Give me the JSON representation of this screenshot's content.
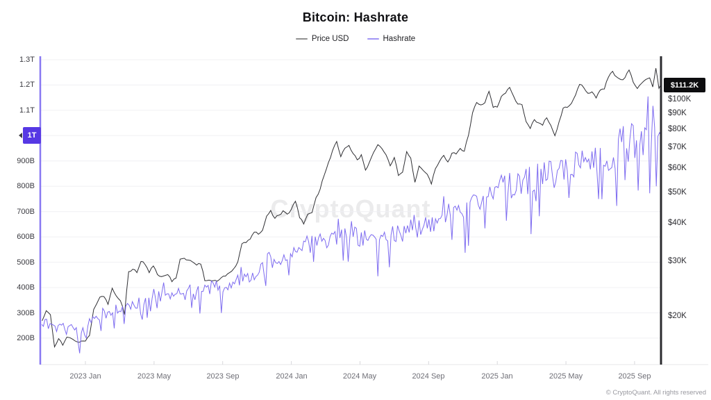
{
  "title": "Bitcoin: Hashrate",
  "legend": {
    "items": [
      {
        "label": "Price USD",
        "swatch_color": "#909090"
      },
      {
        "label": "Hashrate",
        "swatch_color": "#a195f5"
      }
    ]
  },
  "watermark": {
    "text": "CryptoQuant"
  },
  "footer": {
    "text": "© CryptoQuant. All rights reserved"
  },
  "last_value_badges": {
    "hashrate": {
      "label": "1T",
      "bg": "#5638e4",
      "text_color": "#ffffff",
      "value_EH": 1000
    },
    "price": {
      "label": "$111.2K",
      "bg": "#0d0d0f",
      "text_color": "#ffffff",
      "value_K": 111.2
    }
  },
  "colors": {
    "price_line": "#2f2f33",
    "hashrate_line": "#7d6bf0",
    "hashrate_axis": "#8878f2",
    "price_axis": "#2b2b2f",
    "gridline": "#f0f0f3",
    "x_axis_line": "#e7e7ea",
    "x_tick_mark": "#d8d8dc"
  },
  "chart_data": {
    "type": "line",
    "title": "Bitcoin: Hashrate",
    "legend_position": "top-center",
    "grid": "horizontal-only",
    "x_axis": {
      "ticks": [
        "2023 Jan",
        "2023 May",
        "2023 Sep",
        "2024 Jan",
        "2024 May",
        "2024 Sep",
        "2025 Jan",
        "2025 May",
        "2025 Sep"
      ],
      "tick_years": [
        2023.0,
        2023.3333,
        2023.6667,
        2024.0,
        2024.3333,
        2024.6667,
        2025.0,
        2025.3333,
        2025.6667
      ],
      "range_years": [
        2022.788,
        2025.795
      ]
    },
    "left_axis": {
      "title": "Hashrate",
      "unit": "GH/s",
      "scale": "linear",
      "ticks": [
        "1.3T",
        "1.2T",
        "1.1T",
        "1T",
        "900B",
        "800B",
        "700B",
        "600B",
        "500B",
        "400B",
        "300B",
        "200B"
      ],
      "tick_values_EH": [
        1300,
        1200,
        1100,
        1000,
        900,
        800,
        700,
        600,
        500,
        400,
        300,
        200
      ],
      "range_EH": [
        96,
        1314
      ]
    },
    "right_axis": {
      "title": "Price USD",
      "scale": "log",
      "ticks": [
        "$100K",
        "$90K",
        "$80K",
        "$70K",
        "$60K",
        "$50K",
        "$40K",
        "$30K",
        "$20K"
      ],
      "tick_values_K": [
        100,
        90,
        80,
        70,
        60,
        50,
        40,
        30,
        20
      ],
      "range_K": [
        13.9,
        138
      ]
    },
    "series": [
      {
        "name": "Price USD",
        "axis": "right",
        "unit": "USD (thousands)",
        "last_value_K": 111.2,
        "points": [
          [
            2022.79,
            19.3
          ],
          [
            2022.81,
            20.8
          ],
          [
            2022.83,
            20.2
          ],
          [
            2022.85,
            15.9
          ],
          [
            2022.87,
            16.9
          ],
          [
            2022.89,
            16.1
          ],
          [
            2022.91,
            17.1
          ],
          [
            2022.94,
            16.8
          ],
          [
            2022.96,
            16.5
          ],
          [
            2022.98,
            16.6
          ],
          [
            2023.0,
            16.6
          ],
          [
            2023.02,
            17.3
          ],
          [
            2023.04,
            21.0
          ],
          [
            2023.07,
            23.0
          ],
          [
            2023.09,
            23.1
          ],
          [
            2023.11,
            21.8
          ],
          [
            2023.13,
            24.6
          ],
          [
            2023.15,
            23.2
          ],
          [
            2023.17,
            22.4
          ],
          [
            2023.19,
            20.2
          ],
          [
            2023.21,
            27.8
          ],
          [
            2023.23,
            28.3
          ],
          [
            2023.25,
            27.6
          ],
          [
            2023.27,
            30.0
          ],
          [
            2023.29,
            29.3
          ],
          [
            2023.31,
            27.6
          ],
          [
            2023.33,
            29.0
          ],
          [
            2023.35,
            27.2
          ],
          [
            2023.37,
            26.8
          ],
          [
            2023.4,
            27.2
          ],
          [
            2023.42,
            25.8
          ],
          [
            2023.44,
            26.5
          ],
          [
            2023.46,
            30.5
          ],
          [
            2023.48,
            30.7
          ],
          [
            2023.5,
            30.3
          ],
          [
            2023.52,
            29.9
          ],
          [
            2023.54,
            29.2
          ],
          [
            2023.56,
            29.4
          ],
          [
            2023.58,
            26.0
          ],
          [
            2023.6,
            26.1
          ],
          [
            2023.62,
            26.0
          ],
          [
            2023.64,
            25.9
          ],
          [
            2023.66,
            26.6
          ],
          [
            2023.68,
            26.9
          ],
          [
            2023.7,
            27.6
          ],
          [
            2023.72,
            28.4
          ],
          [
            2023.74,
            29.9
          ],
          [
            2023.76,
            34.2
          ],
          [
            2023.78,
            34.5
          ],
          [
            2023.8,
            35.4
          ],
          [
            2023.82,
            37.3
          ],
          [
            2023.84,
            36.7
          ],
          [
            2023.86,
            37.8
          ],
          [
            2023.88,
            42.0
          ],
          [
            2023.9,
            43.8
          ],
          [
            2023.92,
            41.3
          ],
          [
            2023.94,
            42.3
          ],
          [
            2023.96,
            43.7
          ],
          [
            2023.98,
            42.6
          ],
          [
            2024.0,
            44.2
          ],
          [
            2024.02,
            46.9
          ],
          [
            2024.04,
            41.5
          ],
          [
            2024.06,
            39.6
          ],
          [
            2024.08,
            42.6
          ],
          [
            2024.1,
            43.1
          ],
          [
            2024.12,
            48.2
          ],
          [
            2024.14,
            51.3
          ],
          [
            2024.16,
            57.0
          ],
          [
            2024.18,
            62.5
          ],
          [
            2024.2,
            68.3
          ],
          [
            2024.22,
            73.1
          ],
          [
            2024.24,
            65.3
          ],
          [
            2024.26,
            69.5
          ],
          [
            2024.28,
            71.0
          ],
          [
            2024.3,
            66.8
          ],
          [
            2024.32,
            63.8
          ],
          [
            2024.34,
            66.3
          ],
          [
            2024.36,
            59.1
          ],
          [
            2024.38,
            62.9
          ],
          [
            2024.4,
            67.5
          ],
          [
            2024.42,
            71.4
          ],
          [
            2024.44,
            69.3
          ],
          [
            2024.46,
            66.2
          ],
          [
            2024.48,
            61.0
          ],
          [
            2024.5,
            64.9
          ],
          [
            2024.52,
            56.8
          ],
          [
            2024.54,
            58.2
          ],
          [
            2024.56,
            67.8
          ],
          [
            2024.58,
            64.6
          ],
          [
            2024.6,
            54.0
          ],
          [
            2024.62,
            60.9
          ],
          [
            2024.64,
            59.0
          ],
          [
            2024.66,
            57.3
          ],
          [
            2024.68,
            53.3
          ],
          [
            2024.7,
            59.8
          ],
          [
            2024.72,
            63.2
          ],
          [
            2024.74,
            65.9
          ],
          [
            2024.76,
            62.8
          ],
          [
            2024.78,
            67.0
          ],
          [
            2024.8,
            66.6
          ],
          [
            2024.82,
            69.4
          ],
          [
            2024.84,
            68.0
          ],
          [
            2024.86,
            76.5
          ],
          [
            2024.88,
            90.5
          ],
          [
            2024.9,
            97.7
          ],
          [
            2024.92,
            95.9
          ],
          [
            2024.94,
            97.5
          ],
          [
            2024.96,
            106.1
          ],
          [
            2024.98,
            94.2
          ],
          [
            2025.0,
            94.4
          ],
          [
            2025.02,
            102.2
          ],
          [
            2025.04,
            104.7
          ],
          [
            2025.06,
            109.2
          ],
          [
            2025.08,
            102.1
          ],
          [
            2025.1,
            96.5
          ],
          [
            2025.12,
            96.1
          ],
          [
            2025.14,
            84.7
          ],
          [
            2025.16,
            80.5
          ],
          [
            2025.18,
            86.0
          ],
          [
            2025.2,
            84.0
          ],
          [
            2025.22,
            82.5
          ],
          [
            2025.24,
            87.2
          ],
          [
            2025.26,
            82.4
          ],
          [
            2025.28,
            76.3
          ],
          [
            2025.3,
            84.6
          ],
          [
            2025.32,
            93.7
          ],
          [
            2025.34,
            94.2
          ],
          [
            2025.36,
            97.0
          ],
          [
            2025.38,
            103.2
          ],
          [
            2025.4,
            111.7
          ],
          [
            2025.42,
            109.0
          ],
          [
            2025.44,
            104.6
          ],
          [
            2025.46,
            105.7
          ],
          [
            2025.48,
            101.0
          ],
          [
            2025.5,
            107.1
          ],
          [
            2025.52,
            108.0
          ],
          [
            2025.54,
            118.0
          ],
          [
            2025.56,
            123.1
          ],
          [
            2025.58,
            118.0
          ],
          [
            2025.6,
            115.8
          ],
          [
            2025.62,
            117.4
          ],
          [
            2025.64,
            124.3
          ],
          [
            2025.66,
            113.5
          ],
          [
            2025.68,
            108.3
          ],
          [
            2025.7,
            112.5
          ],
          [
            2025.72,
            115.7
          ],
          [
            2025.74,
            117.3
          ],
          [
            2025.755,
            109.6
          ],
          [
            2025.77,
            126.0
          ],
          [
            2025.785,
            108.5
          ],
          [
            2025.795,
            111.2
          ]
        ]
      },
      {
        "name": "Hashrate",
        "axis": "left",
        "unit": "EH/s (axis shows GH/s: 200B–1.3T)",
        "last_value_EH": 1000,
        "trend_anchors": [
          [
            2022.788,
            262
          ],
          [
            2022.85,
            255
          ],
          [
            2022.9,
            245
          ],
          [
            2022.955,
            235
          ],
          [
            2022.97,
            156
          ],
          [
            2022.985,
            240
          ],
          [
            2023.0,
            255
          ],
          [
            2023.08,
            290
          ],
          [
            2023.17,
            322
          ],
          [
            2023.25,
            335
          ],
          [
            2023.33,
            358
          ],
          [
            2023.42,
            370
          ],
          [
            2023.5,
            385
          ],
          [
            2023.58,
            395
          ],
          [
            2023.67,
            408
          ],
          [
            2023.75,
            432
          ],
          [
            2023.83,
            455
          ],
          [
            2023.92,
            505
          ],
          [
            2024.0,
            545
          ],
          [
            2024.08,
            568
          ],
          [
            2024.17,
            595
          ],
          [
            2024.25,
            615
          ],
          [
            2024.33,
            598
          ],
          [
            2024.42,
            588
          ],
          [
            2024.5,
            610
          ],
          [
            2024.58,
            630
          ],
          [
            2024.67,
            652
          ],
          [
            2024.75,
            695
          ],
          [
            2024.83,
            715
          ],
          [
            2024.92,
            748
          ],
          [
            2025.0,
            790
          ],
          [
            2025.08,
            805
          ],
          [
            2025.17,
            830
          ],
          [
            2025.25,
            858
          ],
          [
            2025.33,
            875
          ],
          [
            2025.42,
            885
          ],
          [
            2025.5,
            905
          ],
          [
            2025.58,
            930
          ],
          [
            2025.67,
            962
          ],
          [
            2025.75,
            1008
          ],
          [
            2025.795,
            1000
          ]
        ],
        "daily_noise": {
          "description": "raw daily series oscillates around trend",
          "base_pct": 0.065,
          "dip_prob": 0.1,
          "dip_extra_pct": [
            0.1,
            0.22
          ],
          "spike_prob": 0.07,
          "spike_extra_pct": [
            0.05,
            0.11
          ],
          "clamp_EH": [
            140,
            1185
          ],
          "step_years": 0.008
        }
      }
    ]
  }
}
